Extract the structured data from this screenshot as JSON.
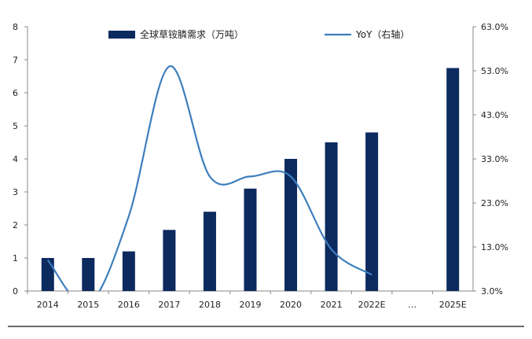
{
  "chart_data": {
    "type": "bar+line",
    "categories": [
      "2014",
      "2015",
      "2016",
      "2017",
      "2018",
      "2019",
      "2020",
      "2021",
      "2022E",
      "…",
      "2025E"
    ],
    "series": [
      {
        "name": "全球草铵膦需求（万吨）",
        "type": "bar",
        "axis": "left",
        "values": [
          1.0,
          1.0,
          1.2,
          1.85,
          2.4,
          3.1,
          4.0,
          4.5,
          4.8,
          null,
          6.75
        ]
      },
      {
        "name": "YoY（右轴）",
        "type": "line",
        "axis": "right",
        "unit": "%",
        "values": [
          10.0,
          0.0,
          20.0,
          54.0,
          29.0,
          29.0,
          29.0,
          12.5,
          6.7,
          null,
          null
        ]
      }
    ],
    "left_axis": {
      "ticks": [
        "0",
        "1",
        "2",
        "3",
        "4",
        "5",
        "6",
        "7",
        "8"
      ],
      "ylim": [
        0,
        8
      ]
    },
    "right_axis": {
      "ticks": [
        "3.0%",
        "13.0%",
        "23.0%",
        "33.0%",
        "43.0%",
        "53.0%",
        "63.0%"
      ],
      "ylim": [
        3,
        63
      ]
    },
    "legend_placement": "top",
    "grid": false,
    "colors": {
      "bar": "#0c2a5e",
      "line": "#3d7ebd",
      "axis": "#888888",
      "rule": "#6b6b6b"
    }
  }
}
